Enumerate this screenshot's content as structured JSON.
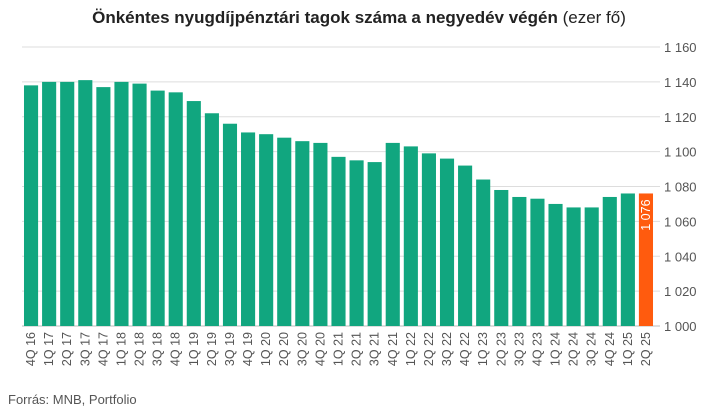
{
  "title_bold": "Önkéntes nyugdíjpénztári tagok száma a negyedév végén",
  "title_unit": "(ezer fő)",
  "source": "Forrás: MNB, Portfolio",
  "colors": {
    "bar": "#11a67f",
    "highlight": "#ff5b0e",
    "grid": "#dddddd",
    "label": "#555555"
  },
  "chart_data": {
    "type": "bar",
    "categories": [
      "4Q 16",
      "1Q 17",
      "2Q 17",
      "3Q 17",
      "4Q 17",
      "1Q 18",
      "2Q 18",
      "3Q 18",
      "4Q 18",
      "1Q 19",
      "2Q 19",
      "3Q 19",
      "4Q 19",
      "1Q 20",
      "2Q 20",
      "3Q 20",
      "4Q 20",
      "1Q 21",
      "2Q 21",
      "3Q 21",
      "4Q 21",
      "1Q 22",
      "2Q 22",
      "3Q 22",
      "4Q 22",
      "1Q 23",
      "2Q 23",
      "3Q 23",
      "4Q 23",
      "1Q 24",
      "2Q 24",
      "3Q 24",
      "4Q 24",
      "1Q 25",
      "2Q 25"
    ],
    "values": [
      1138,
      1140,
      1140,
      1141,
      1137,
      1140,
      1139,
      1135,
      1134,
      1129,
      1122,
      1116,
      1111,
      1110,
      1108,
      1106,
      1105,
      1097,
      1095,
      1094,
      1105,
      1103,
      1099,
      1096,
      1092,
      1084,
      1078,
      1074,
      1073,
      1070,
      1068,
      1068,
      1074,
      1076,
      1076
    ],
    "highlight_index": 34,
    "highlight_label": "1 076",
    "ylim": [
      1000,
      1160
    ],
    "yticks": [
      1000,
      1020,
      1040,
      1060,
      1080,
      1100,
      1120,
      1140,
      1160
    ],
    "ytick_labels": [
      "1 000",
      "1 020",
      "1 040",
      "1 060",
      "1 080",
      "1 100",
      "1 120",
      "1 140",
      "1 160"
    ],
    "grid": true,
    "axis_side": "right"
  }
}
